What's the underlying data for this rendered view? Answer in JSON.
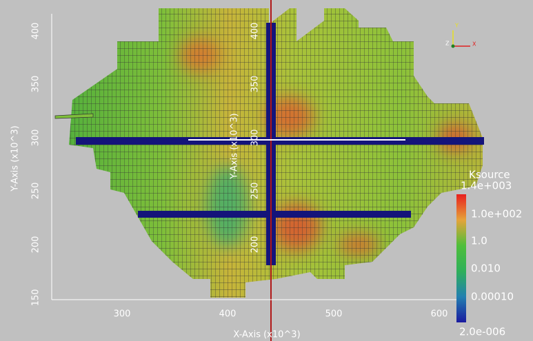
{
  "x_axis": {
    "title": "X-Axis (x10^3)",
    "ticks": [
      "300",
      "400",
      "500",
      "600"
    ]
  },
  "y_axis": {
    "title": "Y-Axis (x10^3)",
    "ticks": [
      "150",
      "200",
      "250",
      "300",
      "350",
      "400"
    ]
  },
  "inner_y_axis": {
    "title": "Y-Axis (x10^3)",
    "ticks": [
      "200",
      "250",
      "300",
      "350",
      "400"
    ]
  },
  "colorbar": {
    "title": "Ksource",
    "labels": [
      "1.4e+003",
      "1.0e+002",
      "1.0",
      "0.010",
      "0.00010",
      "2.0e-006"
    ]
  },
  "orientation": {
    "labels": [
      "Y",
      "Z",
      "X"
    ]
  }
}
